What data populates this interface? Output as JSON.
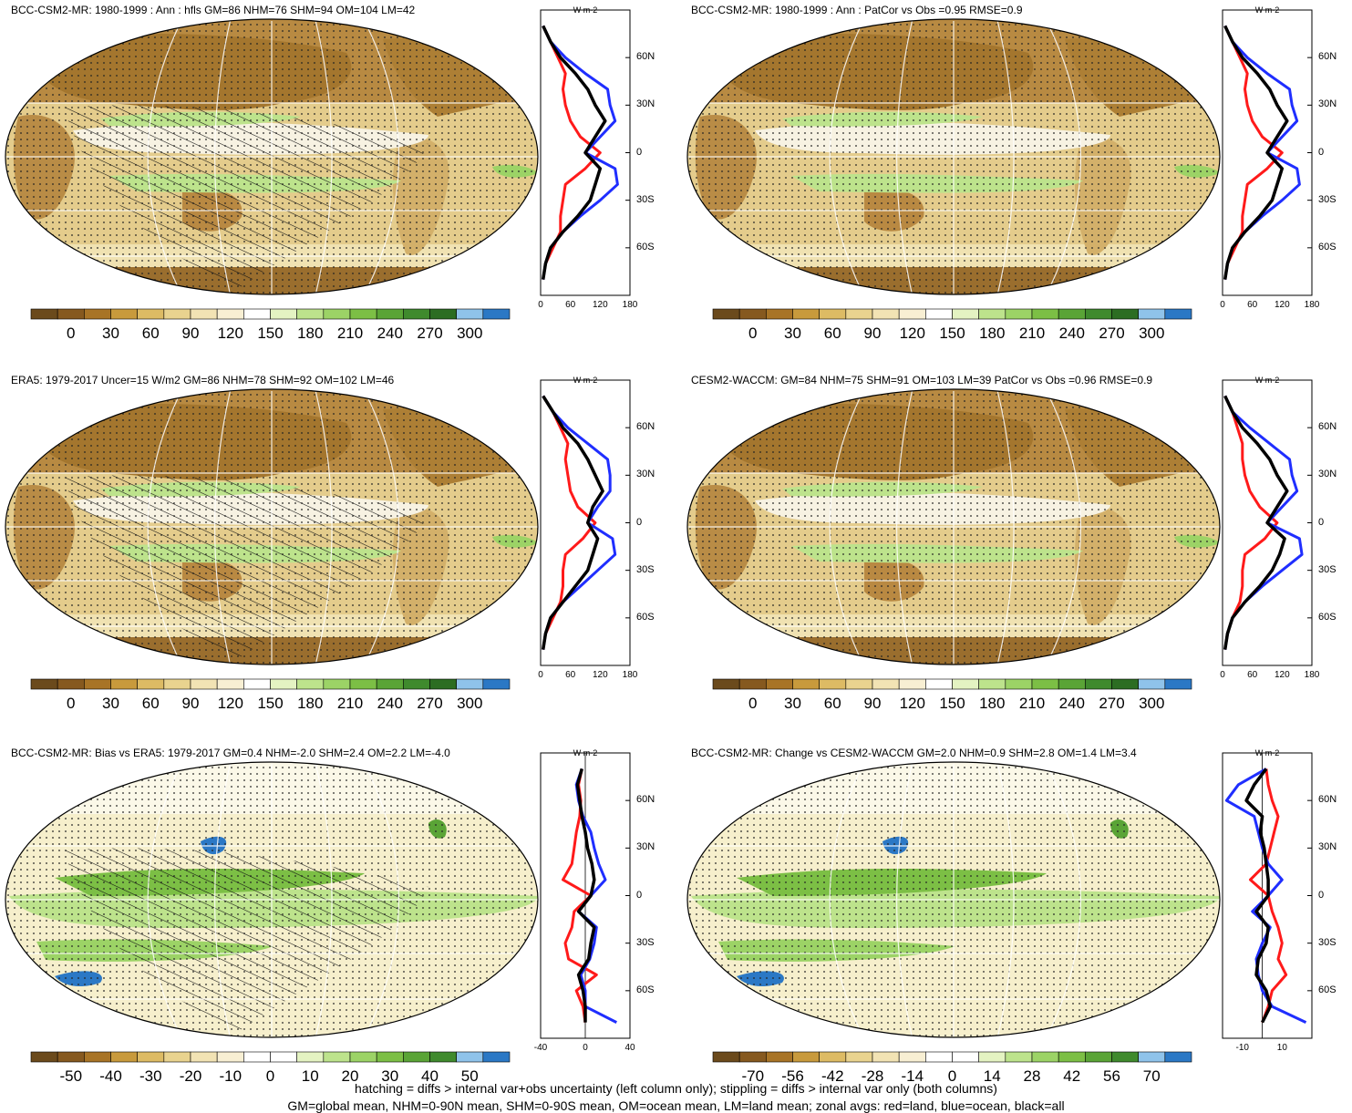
{
  "footer": {
    "line1": "hatching = diffs > internal var+obs uncertainty (left column only); stippling = diffs > internal var only (both columns)",
    "line2": "GM=global mean, NHM=0-90N mean, SHM=0-90S mean, OM=ocean mean, LM=land mean; zonal avgs: red=land, blue=ocean, black=all"
  },
  "colors": {
    "series_land": "#ff1a1a",
    "series_ocean": "#1f2eff",
    "series_all": "#000000",
    "abs_scale": [
      "#6b4a1c",
      "#86591f",
      "#a87426",
      "#c89a3c",
      "#ddbb64",
      "#e9d38f",
      "#f2e3b4",
      "#f8efd3",
      "#ffffff",
      "#e4f3c2",
      "#bde38c",
      "#9cd366",
      "#7cbf45",
      "#5aa436",
      "#3f8a2d",
      "#2c6d22",
      "#8fc3ea",
      "#2b78c5"
    ],
    "bias_scale": [
      "#6b4a1c",
      "#86591f",
      "#a87426",
      "#c89a3c",
      "#ddbb64",
      "#e9d38f",
      "#f2e3b4",
      "#f8efd3",
      "#ffffff",
      "#ffffff",
      "#e4f3c2",
      "#bde38c",
      "#9cd366",
      "#7cbf45",
      "#5aa436",
      "#3f8a2d",
      "#8fc3ea",
      "#2b78c5"
    ]
  },
  "panels": [
    {
      "title": "BCC-CSM2-MR: 1980-1999 : Ann : hfls GM=86 NHM=76 SHM=94 OM=104 LM=42",
      "colorbar_labels": [
        "0",
        "30",
        "60",
        "90",
        "120",
        "150",
        "180",
        "210",
        "240",
        "270",
        "300"
      ],
      "palette": "abs",
      "hatching": true,
      "zonal": {
        "unit": "W m-2",
        "lat_labels": [
          "60N",
          "30N",
          "0",
          "30S",
          "60S"
        ],
        "x_ticks": [
          "0",
          "60",
          "120",
          "180"
        ],
        "xlim": [
          0,
          180
        ],
        "lat": [
          80,
          70,
          60,
          50,
          40,
          30,
          20,
          10,
          0,
          -10,
          -20,
          -30,
          -40,
          -50,
          -60,
          -70,
          -80
        ],
        "land": [
          5,
          20,
          35,
          50,
          45,
          50,
          60,
          80,
          120,
          90,
          50,
          45,
          40,
          40,
          25,
          10,
          5
        ],
        "ocean": [
          5,
          20,
          50,
          90,
          135,
          140,
          150,
          120,
          90,
          150,
          155,
          120,
          80,
          45,
          20,
          10,
          5
        ],
        "all": [
          5,
          20,
          40,
          70,
          95,
          110,
          130,
          110,
          90,
          120,
          110,
          100,
          75,
          45,
          20,
          10,
          5
        ]
      }
    },
    {
      "title": "BCC-CSM2-MR: 1980-1999 : Ann : PatCor vs Obs =0.95 RMSE=0.9",
      "colorbar_labels": [
        "0",
        "30",
        "60",
        "90",
        "120",
        "150",
        "180",
        "210",
        "240",
        "270",
        "300"
      ],
      "palette": "abs",
      "hatching": false,
      "zonal": {
        "unit": "W m-2",
        "lat_labels": [
          "60N",
          "30N",
          "0",
          "30S",
          "60S"
        ],
        "x_ticks": [
          "0",
          "60",
          "120",
          "180"
        ],
        "xlim": [
          0,
          180
        ],
        "lat": [
          80,
          70,
          60,
          50,
          40,
          30,
          20,
          10,
          0,
          -10,
          -20,
          -30,
          -40,
          -50,
          -60,
          -70,
          -80
        ],
        "land": [
          5,
          20,
          35,
          50,
          45,
          50,
          60,
          80,
          120,
          90,
          50,
          45,
          40,
          40,
          25,
          10,
          5
        ],
        "ocean": [
          5,
          20,
          50,
          90,
          135,
          140,
          150,
          120,
          90,
          150,
          155,
          120,
          80,
          45,
          20,
          10,
          5
        ],
        "all": [
          5,
          20,
          40,
          70,
          95,
          110,
          130,
          110,
          90,
          120,
          110,
          100,
          75,
          45,
          20,
          10,
          5
        ]
      }
    },
    {
      "title": "ERA5: 1979-2017 Uncer=15 W/m2 GM=86 NHM=78 SHM=92 OM=102 LM=46",
      "colorbar_labels": [
        "0",
        "30",
        "60",
        "90",
        "120",
        "150",
        "180",
        "210",
        "240",
        "270",
        "300"
      ],
      "palette": "abs",
      "hatching": true,
      "zonal": {
        "unit": "W m-2",
        "lat_labels": [
          "60N",
          "30N",
          "0",
          "30S",
          "60S"
        ],
        "x_ticks": [
          "0",
          "60",
          "120",
          "180"
        ],
        "xlim": [
          0,
          180
        ],
        "lat": [
          80,
          70,
          60,
          50,
          40,
          30,
          20,
          10,
          0,
          -10,
          -20,
          -30,
          -40,
          -50,
          -60,
          -70,
          -80
        ],
        "land": [
          5,
          25,
          40,
          55,
          50,
          55,
          60,
          75,
          110,
          85,
          50,
          45,
          45,
          40,
          25,
          10,
          5
        ],
        "ocean": [
          5,
          25,
          55,
          95,
          135,
          140,
          140,
          115,
          95,
          145,
          150,
          115,
          80,
          45,
          20,
          10,
          5
        ],
        "all": [
          5,
          25,
          45,
          75,
          95,
          110,
          125,
          105,
          95,
          115,
          105,
          95,
          70,
          45,
          20,
          10,
          5
        ]
      }
    },
    {
      "title": "CESM2-WACCM: GM=84 NHM=75 SHM=91 OM=103 LM=39 PatCor vs Obs =0.96 RMSE=0.9",
      "colorbar_labels": [
        "0",
        "30",
        "60",
        "90",
        "120",
        "150",
        "180",
        "210",
        "240",
        "270",
        "300"
      ],
      "palette": "abs",
      "hatching": false,
      "zonal": {
        "unit": "W m-2",
        "lat_labels": [
          "60N",
          "30N",
          "0",
          "30S",
          "60S"
        ],
        "x_ticks": [
          "0",
          "60",
          "120",
          "180"
        ],
        "xlim": [
          0,
          180
        ],
        "lat": [
          80,
          70,
          60,
          50,
          40,
          30,
          20,
          10,
          0,
          -10,
          -20,
          -30,
          -40,
          -50,
          -60,
          -70,
          -80
        ],
        "land": [
          5,
          20,
          30,
          40,
          40,
          45,
          55,
          75,
          110,
          85,
          45,
          40,
          40,
          35,
          20,
          10,
          5
        ],
        "ocean": [
          5,
          20,
          55,
          95,
          135,
          140,
          150,
          120,
          90,
          155,
          160,
          120,
          80,
          45,
          20,
          10,
          5
        ],
        "all": [
          5,
          20,
          40,
          70,
          95,
          110,
          130,
          110,
          90,
          125,
          115,
          100,
          75,
          45,
          20,
          10,
          5
        ]
      }
    },
    {
      "title": "BCC-CSM2-MR: Bias vs ERA5: 1979-2017 GM=0.4 NHM=-2.0 SHM=2.4 OM=2.2 LM=-4.0",
      "colorbar_labels": [
        "-50",
        "-40",
        "-30",
        "-20",
        "-10",
        "0",
        "10",
        "20",
        "30",
        "40",
        "50"
      ],
      "palette": "bias",
      "hatching": true,
      "zonal": {
        "unit": "W m-2",
        "lat_labels": [
          "60N",
          "30N",
          "0",
          "30S",
          "60S"
        ],
        "x_ticks": [
          "-40",
          "0",
          "40"
        ],
        "xlim": [
          -40,
          40
        ],
        "lat": [
          80,
          70,
          60,
          50,
          40,
          30,
          20,
          10,
          0,
          -10,
          -20,
          -30,
          -40,
          -50,
          -60,
          -70,
          -80
        ],
        "land": [
          -3,
          -6,
          -4,
          -5,
          -8,
          -10,
          -12,
          -20,
          5,
          -10,
          -12,
          -18,
          -15,
          10,
          -8,
          -2,
          0
        ],
        "ocean": [
          -3,
          -8,
          -6,
          -2,
          5,
          8,
          12,
          18,
          5,
          -6,
          10,
          8,
          4,
          -4,
          0,
          0,
          28
        ],
        "all": [
          -3,
          -7,
          -5,
          -3,
          0,
          2,
          6,
          8,
          5,
          -6,
          8,
          5,
          3,
          -6,
          -2,
          0,
          0
        ]
      }
    },
    {
      "title": "BCC-CSM2-MR: Change vs CESM2-WACCM GM=2.0 NHM=0.9 SHM=2.8 OM=1.4 LM=3.4",
      "colorbar_labels": [
        "-70",
        "-56",
        "-42",
        "-28",
        "-14",
        "0",
        "14",
        "28",
        "42",
        "56",
        "70"
      ],
      "palette": "bias",
      "hatching": false,
      "zonal": {
        "unit": "W m-2",
        "lat_labels": [
          "60N",
          "30N",
          "0",
          "30S",
          "60S"
        ],
        "x_ticks": [
          "-10",
          "10"
        ],
        "xlim": [
          -20,
          25
        ],
        "lat": [
          80,
          70,
          60,
          50,
          40,
          30,
          20,
          10,
          0,
          -10,
          -20,
          -30,
          -40,
          -50,
          -60,
          -70,
          -80
        ],
        "land": [
          2,
          3,
          5,
          8,
          6,
          4,
          2,
          -6,
          3,
          5,
          8,
          10,
          8,
          12,
          5,
          3,
          0
        ],
        "ocean": [
          2,
          -12,
          -18,
          -4,
          -2,
          0,
          3,
          10,
          3,
          -5,
          4,
          0,
          -3,
          -2,
          0,
          5,
          22
        ],
        "all": [
          2,
          -4,
          -8,
          0,
          -1,
          1,
          2,
          3,
          3,
          -3,
          3,
          2,
          -2,
          -3,
          2,
          4,
          0
        ]
      }
    }
  ]
}
